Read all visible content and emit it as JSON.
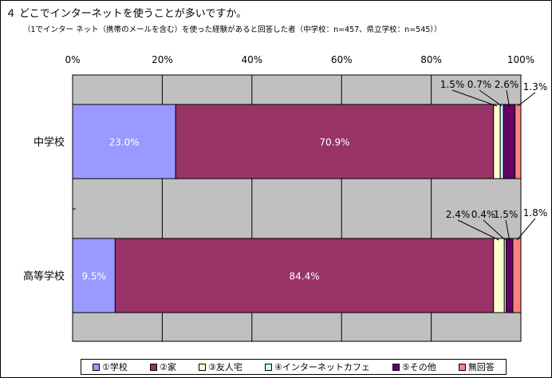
{
  "title": "４ どこでインターネットを使うことが多いですか。",
  "subtitle": "（1でインター ネット（携帯のメールを含む）を使った経験があると回答した者（中学校：n=457、県立学校：n=545））",
  "chart_data": {
    "type": "bar",
    "orientation": "horizontal",
    "stacked": true,
    "percent": true,
    "categories": [
      "中学校",
      "高等学校"
    ],
    "xlim": [
      0,
      100
    ],
    "x_ticks": [
      "0%",
      "20%",
      "40%",
      "60%",
      "80%",
      "100%"
    ],
    "grid": true,
    "legend_position": "bottom",
    "series": [
      {
        "name": "①学校",
        "values": [
          23.0,
          9.5
        ],
        "labels": [
          "23.0%",
          "9.5%"
        ],
        "color": "#9999ff"
      },
      {
        "name": "②家",
        "values": [
          70.9,
          84.4
        ],
        "labels": [
          "70.9%",
          "84.4%"
        ],
        "color": "#993366"
      },
      {
        "name": "③友人宅",
        "values": [
          1.5,
          2.4
        ],
        "labels": [
          "1.5%",
          "2.4%"
        ],
        "color": "#ffffcc"
      },
      {
        "name": "④インターネットカフェ",
        "values": [
          0.7,
          0.4
        ],
        "labels": [
          "0.7%",
          "0.4%"
        ],
        "color": "#ccffff"
      },
      {
        "name": "⑤その他",
        "values": [
          2.6,
          1.5
        ],
        "labels": [
          "2.6%",
          "1.5%"
        ],
        "color": "#660066"
      },
      {
        "name": "無回答",
        "values": [
          1.3,
          1.8
        ],
        "labels": [
          "1.3%",
          "1.8%"
        ],
        "color": "#ff8080"
      }
    ],
    "colors": {
      "plot_background": "#c0c0c0",
      "grid": "#000000",
      "bar_label_text": "#ffffff"
    }
  }
}
